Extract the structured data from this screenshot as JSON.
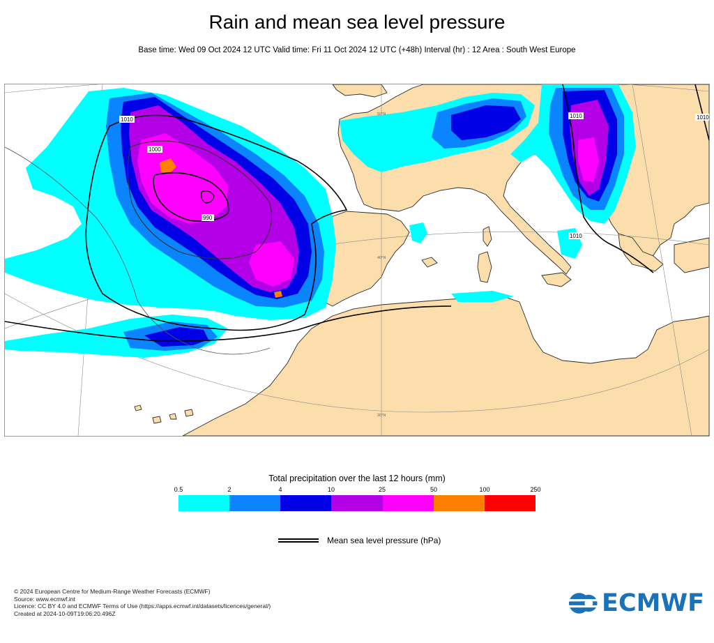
{
  "header": {
    "title": "Rain and mean sea level pressure",
    "subtitle": "Base time: Wed 09 Oct 2024 12 UTC Valid time: Fri 11 Oct 2024 12 UTC (+48h) Interval (hr) : 12 Area : South West Europe"
  },
  "map": {
    "isobar_labels": [
      "1010",
      "1000",
      "990",
      "1010",
      "1010",
      "1010"
    ],
    "latitude_labels": [
      "50°N",
      "40°N",
      "30°N"
    ],
    "colors": {
      "land": "#fbdeac",
      "sea": "#ffffff",
      "coastline": "#2b2b2b",
      "isobar": "#000000"
    }
  },
  "legend": {
    "title": "Total precipitation over the last 12 hours (mm)",
    "ticks": [
      "0.5",
      "2",
      "4",
      "10",
      "25",
      "50",
      "100",
      "250"
    ],
    "colors": [
      "#00ffff",
      "#0a84ff",
      "#0000e6",
      "#b400e6",
      "#ff00ff",
      "#ff8000",
      "#ff0000"
    ],
    "mslp_label": "Mean sea level pressure (hPa)"
  },
  "footer": {
    "lines": [
      "© 2024 European Centre for Medium-Range Weather Forecasts (ECMWF)",
      "Source: www.ecmwf.int",
      "Licence: CC BY 4.0 and ECMWF Terms of Use (https://apps.ecmwf.int/datasets/licences/general/)",
      "Created at 2024-10-09T19:06:20.496Z"
    ]
  },
  "logo": {
    "text": "ECMWF",
    "color": "#1a73b8"
  }
}
